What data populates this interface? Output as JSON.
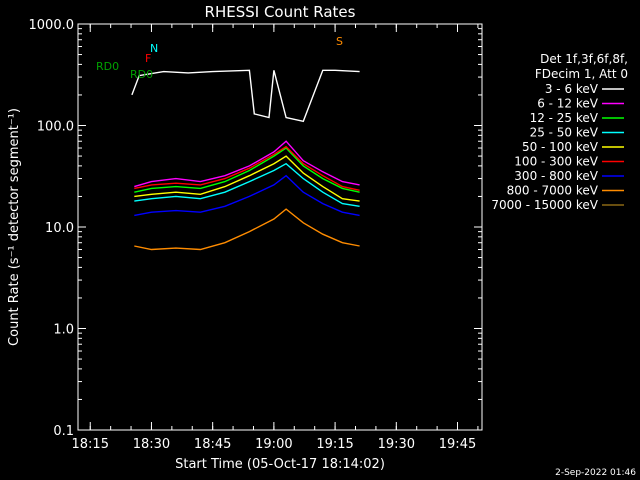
{
  "chart_data": {
    "type": "line",
    "title": "RHESSI Count Rates",
    "xlabel": "Start Time (05-Oct-17 18:14:02)",
    "ylabel": "Count Rate (s⁻¹ detector segment⁻¹)",
    "yscale": "log",
    "ylim": [
      0.1,
      1000
    ],
    "xlim_minutes": [
      18.2,
      19.85
    ],
    "x_ticks": [
      "18:15",
      "18:30",
      "18:45",
      "19:00",
      "19:15",
      "19:30",
      "19:45"
    ],
    "y_ticks": [
      "0.1",
      "1.0",
      "10.0",
      "100.0",
      "1000.0"
    ],
    "legend": {
      "position": "right",
      "header": [
        "Det 1f,3f,6f,8f,",
        "FDecim 1, Att 0"
      ]
    },
    "series": [
      {
        "name": "3 - 6 keV",
        "color": "#ffffff",
        "x": [
          18.42,
          18.45,
          18.55,
          18.65,
          18.75,
          18.9,
          18.92,
          18.98,
          19.0,
          19.05,
          19.12,
          19.2,
          19.25,
          19.35
        ],
        "y": [
          200,
          310,
          340,
          330,
          340,
          350,
          130,
          120,
          350,
          120,
          110,
          350,
          350,
          340
        ]
      },
      {
        "name": "6 - 12 keV",
        "color": "#ff00ff",
        "x": [
          18.43,
          18.5,
          18.6,
          18.7,
          18.8,
          18.9,
          19.0,
          19.05,
          19.12,
          19.2,
          19.28,
          19.35
        ],
        "y": [
          25,
          28,
          30,
          28,
          32,
          40,
          55,
          70,
          45,
          35,
          28,
          26
        ]
      },
      {
        "name": "12 - 25 keV",
        "color": "#00ff00",
        "x": [
          18.43,
          18.5,
          18.6,
          18.7,
          18.8,
          18.9,
          19.0,
          19.05,
          19.12,
          19.2,
          19.28,
          19.35
        ],
        "y": [
          22,
          24,
          25,
          24,
          28,
          36,
          50,
          60,
          40,
          30,
          24,
          22
        ]
      },
      {
        "name": "25 - 50 keV",
        "color": "#00ffff",
        "x": [
          18.43,
          18.5,
          18.6,
          18.7,
          18.8,
          18.9,
          19.0,
          19.05,
          19.12,
          19.2,
          19.28,
          19.35
        ],
        "y": [
          18,
          19,
          20,
          19,
          22,
          28,
          36,
          42,
          30,
          22,
          17,
          16
        ]
      },
      {
        "name": "50 - 100 keV",
        "color": "#ffff00",
        "x": [
          18.43,
          18.5,
          18.6,
          18.7,
          18.8,
          18.9,
          19.0,
          19.05,
          19.12,
          19.2,
          19.28,
          19.35
        ],
        "y": [
          20,
          21,
          22,
          21,
          25,
          32,
          42,
          50,
          34,
          25,
          19,
          18
        ]
      },
      {
        "name": "100 - 300 keV",
        "color": "#ff0000",
        "x": [
          18.43,
          18.5,
          18.6,
          18.7,
          18.8,
          18.9,
          19.0,
          19.05,
          19.12,
          19.2,
          19.28,
          19.35
        ],
        "y": [
          24,
          26,
          27,
          26,
          30,
          38,
          52,
          62,
          42,
          32,
          25,
          23
        ]
      },
      {
        "name": "300 - 800 keV",
        "color": "#0000ff",
        "x": [
          18.43,
          18.5,
          18.6,
          18.7,
          18.8,
          18.9,
          19.0,
          19.05,
          19.12,
          19.2,
          19.28,
          19.35
        ],
        "y": [
          13,
          14,
          14.5,
          14,
          16,
          20,
          26,
          32,
          22,
          17,
          14,
          13
        ]
      },
      {
        "name": "800 - 7000 keV",
        "color": "#ff8c00",
        "x": [
          18.43,
          18.5,
          18.6,
          18.7,
          18.8,
          18.9,
          19.0,
          19.05,
          19.12,
          19.2,
          19.28,
          19.35
        ],
        "y": [
          6.5,
          6,
          6.2,
          6,
          7,
          9,
          12,
          15,
          11,
          8.5,
          7,
          6.5
        ]
      },
      {
        "name": "7000 - 15000 keV",
        "color": "#8b6914",
        "x": [],
        "y": []
      }
    ],
    "annotations": {
      "credit": "2-Sep-2022 01:46",
      "flags": [
        {
          "label": "N",
          "color": "#00ffff"
        },
        {
          "label": "F",
          "color": "#ff0000"
        },
        {
          "label": "RD0",
          "color": "#00a000"
        },
        {
          "label": "RD0",
          "color": "#00a000"
        },
        {
          "label": "S",
          "color": "#ff8c00"
        }
      ]
    }
  }
}
